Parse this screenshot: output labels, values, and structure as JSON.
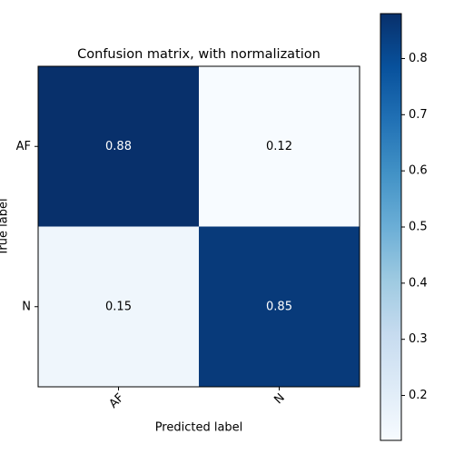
{
  "chart_data": {
    "type": "heatmap",
    "title": "Confusion matrix, with normalization",
    "xlabel": "Predicted label",
    "ylabel": "True label",
    "x_categories": [
      "AF",
      "N"
    ],
    "y_categories": [
      "AF",
      "N"
    ],
    "values": [
      [
        0.88,
        0.12
      ],
      [
        0.15,
        0.85
      ]
    ],
    "colormap": [
      "#f7fbff",
      "#deebf7",
      "#c6dbef",
      "#9ecae1",
      "#6baed6",
      "#4292c6",
      "#2171b5",
      "#08519c",
      "#08306b"
    ],
    "clim": [
      0.12,
      0.88
    ],
    "cticks": [
      0.2,
      0.3,
      0.4,
      0.5,
      0.6,
      0.7,
      0.8
    ]
  }
}
